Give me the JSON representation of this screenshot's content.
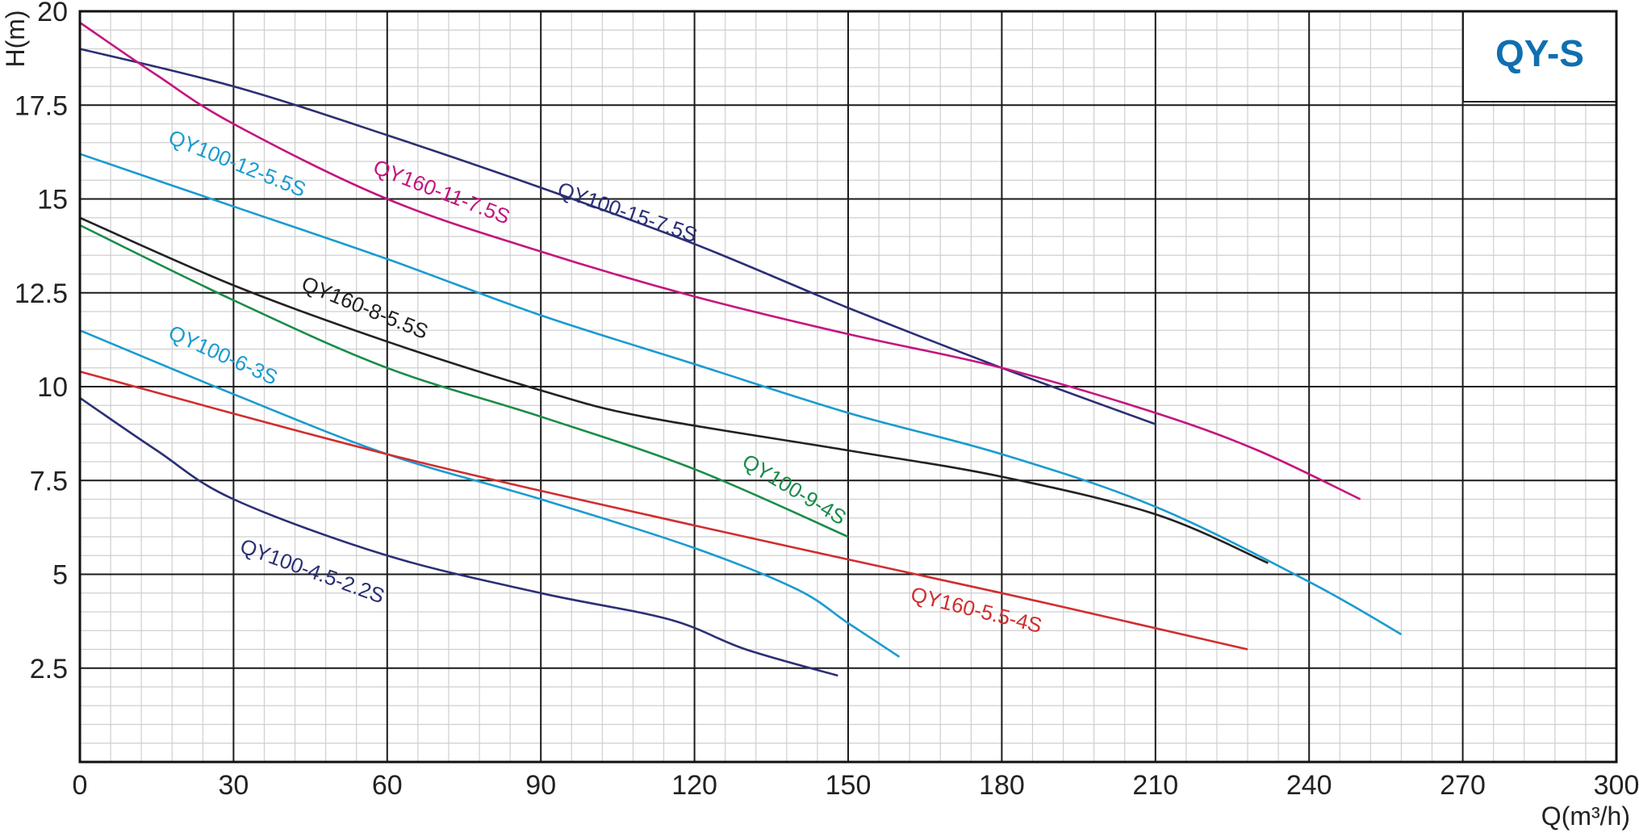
{
  "chart_data": {
    "type": "line",
    "title": "QY-S",
    "xlabel": "Q(m³/h)",
    "ylabel": "H(m)",
    "xlim": [
      0,
      300
    ],
    "ylim": [
      0,
      20
    ],
    "x_ticks": [
      "0",
      "30",
      "60",
      "90",
      "120",
      "150",
      "180",
      "210",
      "240",
      "270",
      "300"
    ],
    "y_ticks": [
      "2.5",
      "5",
      "7.5",
      "10",
      "12.5",
      "15",
      "17.5",
      "20"
    ],
    "grid": true,
    "series": [
      {
        "name": "QY100-15-7.5S",
        "color": "#2b2f75",
        "points": [
          [
            0,
            19.0
          ],
          [
            30,
            18.0
          ],
          [
            60,
            16.7
          ],
          [
            90,
            15.3
          ],
          [
            120,
            13.8
          ],
          [
            150,
            12.1
          ],
          [
            180,
            10.5
          ],
          [
            210,
            9.0
          ]
        ]
      },
      {
        "name": "QY160-11-7.5S",
        "color": "#c4157f",
        "points": [
          [
            0,
            19.7
          ],
          [
            15,
            18.3
          ],
          [
            30,
            17.0
          ],
          [
            60,
            15.0
          ],
          [
            90,
            13.6
          ],
          [
            120,
            12.4
          ],
          [
            150,
            11.4
          ],
          [
            180,
            10.5
          ],
          [
            210,
            9.3
          ],
          [
            230,
            8.3
          ],
          [
            250,
            7.0
          ]
        ]
      },
      {
        "name": "QY100-12-5.5S",
        "color": "#1a9bd0",
        "points": [
          [
            0,
            16.2
          ],
          [
            30,
            14.8
          ],
          [
            60,
            13.4
          ],
          [
            90,
            11.9
          ],
          [
            120,
            10.6
          ],
          [
            150,
            9.3
          ],
          [
            180,
            8.2
          ],
          [
            210,
            6.8
          ],
          [
            240,
            4.8
          ],
          [
            258,
            3.4
          ]
        ]
      },
      {
        "name": "QY160-8-5.5S",
        "color": "#222222",
        "points": [
          [
            0,
            14.5
          ],
          [
            30,
            12.7
          ],
          [
            60,
            11.2
          ],
          [
            90,
            9.9
          ],
          [
            110,
            9.2
          ],
          [
            150,
            8.3
          ],
          [
            180,
            7.6
          ],
          [
            210,
            6.6
          ],
          [
            232,
            5.3
          ]
        ]
      },
      {
        "name": "QY100-9-4S",
        "color": "#1a8c4a",
        "points": [
          [
            0,
            14.3
          ],
          [
            30,
            12.3
          ],
          [
            60,
            10.5
          ],
          [
            90,
            9.2
          ],
          [
            120,
            7.8
          ],
          [
            150,
            6.0
          ]
        ]
      },
      {
        "name": "QY100-6-3S",
        "color": "#1a9bd0",
        "points": [
          [
            0,
            11.5
          ],
          [
            30,
            9.8
          ],
          [
            60,
            8.2
          ],
          [
            90,
            7.0
          ],
          [
            120,
            5.7
          ],
          [
            140,
            4.6
          ],
          [
            150,
            3.7
          ],
          [
            160,
            2.8
          ]
        ]
      },
      {
        "name": "QY160-5.5-4S",
        "color": "#d12e2e",
        "points": [
          [
            0,
            10.4
          ],
          [
            60,
            8.2
          ],
          [
            120,
            6.3
          ],
          [
            180,
            4.5
          ],
          [
            228,
            3.0
          ]
        ]
      },
      {
        "name": "QY100-4.5-2.2S",
        "color": "#2b2f75",
        "points": [
          [
            0,
            9.7
          ],
          [
            15,
            8.3
          ],
          [
            30,
            7.0
          ],
          [
            60,
            5.5
          ],
          [
            90,
            4.5
          ],
          [
            115,
            3.8
          ],
          [
            130,
            3.0
          ],
          [
            148,
            2.3
          ]
        ]
      }
    ]
  }
}
